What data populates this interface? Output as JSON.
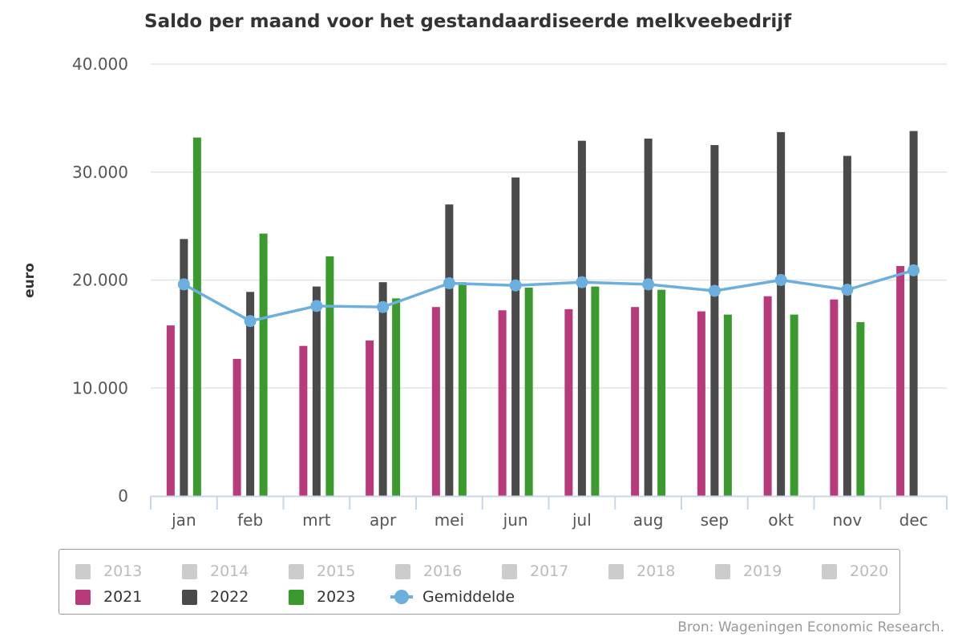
{
  "title": "Saldo per maand voor het gestandaardiseerde melkveebedrijf",
  "source": "Bron: Wageningen Economic Research.",
  "colors": {
    "2021": "#b83a7a",
    "2022": "#4a4a4a",
    "2023": "#3a9a2e",
    "gemiddelde": "#6aafde",
    "hidden": "#cccccc"
  },
  "legend": {
    "hidden_series": [
      "2013",
      "2014",
      "2015",
      "2016",
      "2017",
      "2018",
      "2019",
      "2020"
    ],
    "visible_series": [
      "2021",
      "2022",
      "2023",
      "Gemiddelde"
    ]
  },
  "chart_data": {
    "type": "bar",
    "ylabel": "euro",
    "xlabel": "",
    "ylim": [
      0,
      40000
    ],
    "yticks": [
      0,
      10000,
      20000,
      30000,
      40000
    ],
    "ytick_labels": [
      "0",
      "10.000",
      "20.000",
      "30.000",
      "40.000"
    ],
    "categories": [
      "jan",
      "feb",
      "mrt",
      "apr",
      "mei",
      "jun",
      "jul",
      "aug",
      "sep",
      "okt",
      "nov",
      "dec"
    ],
    "grid": true,
    "legend_position": "bottom",
    "series": [
      {
        "name": "2021",
        "type": "bar",
        "values": [
          15800,
          12700,
          13900,
          14400,
          17500,
          17200,
          17300,
          17500,
          17100,
          18500,
          18200,
          21300
        ]
      },
      {
        "name": "2022",
        "type": "bar",
        "values": [
          23800,
          18900,
          19400,
          19800,
          27000,
          29500,
          32900,
          33100,
          32500,
          33700,
          31500,
          33800
        ]
      },
      {
        "name": "2023",
        "type": "bar",
        "values": [
          33200,
          24300,
          22200,
          18300,
          19800,
          19300,
          19400,
          19100,
          16800,
          16800,
          16100,
          null
        ]
      },
      {
        "name": "Gemiddelde",
        "type": "line",
        "values": [
          19600,
          16200,
          17600,
          17500,
          19700,
          19500,
          19800,
          19600,
          19000,
          20000,
          19100,
          20900
        ]
      }
    ]
  }
}
